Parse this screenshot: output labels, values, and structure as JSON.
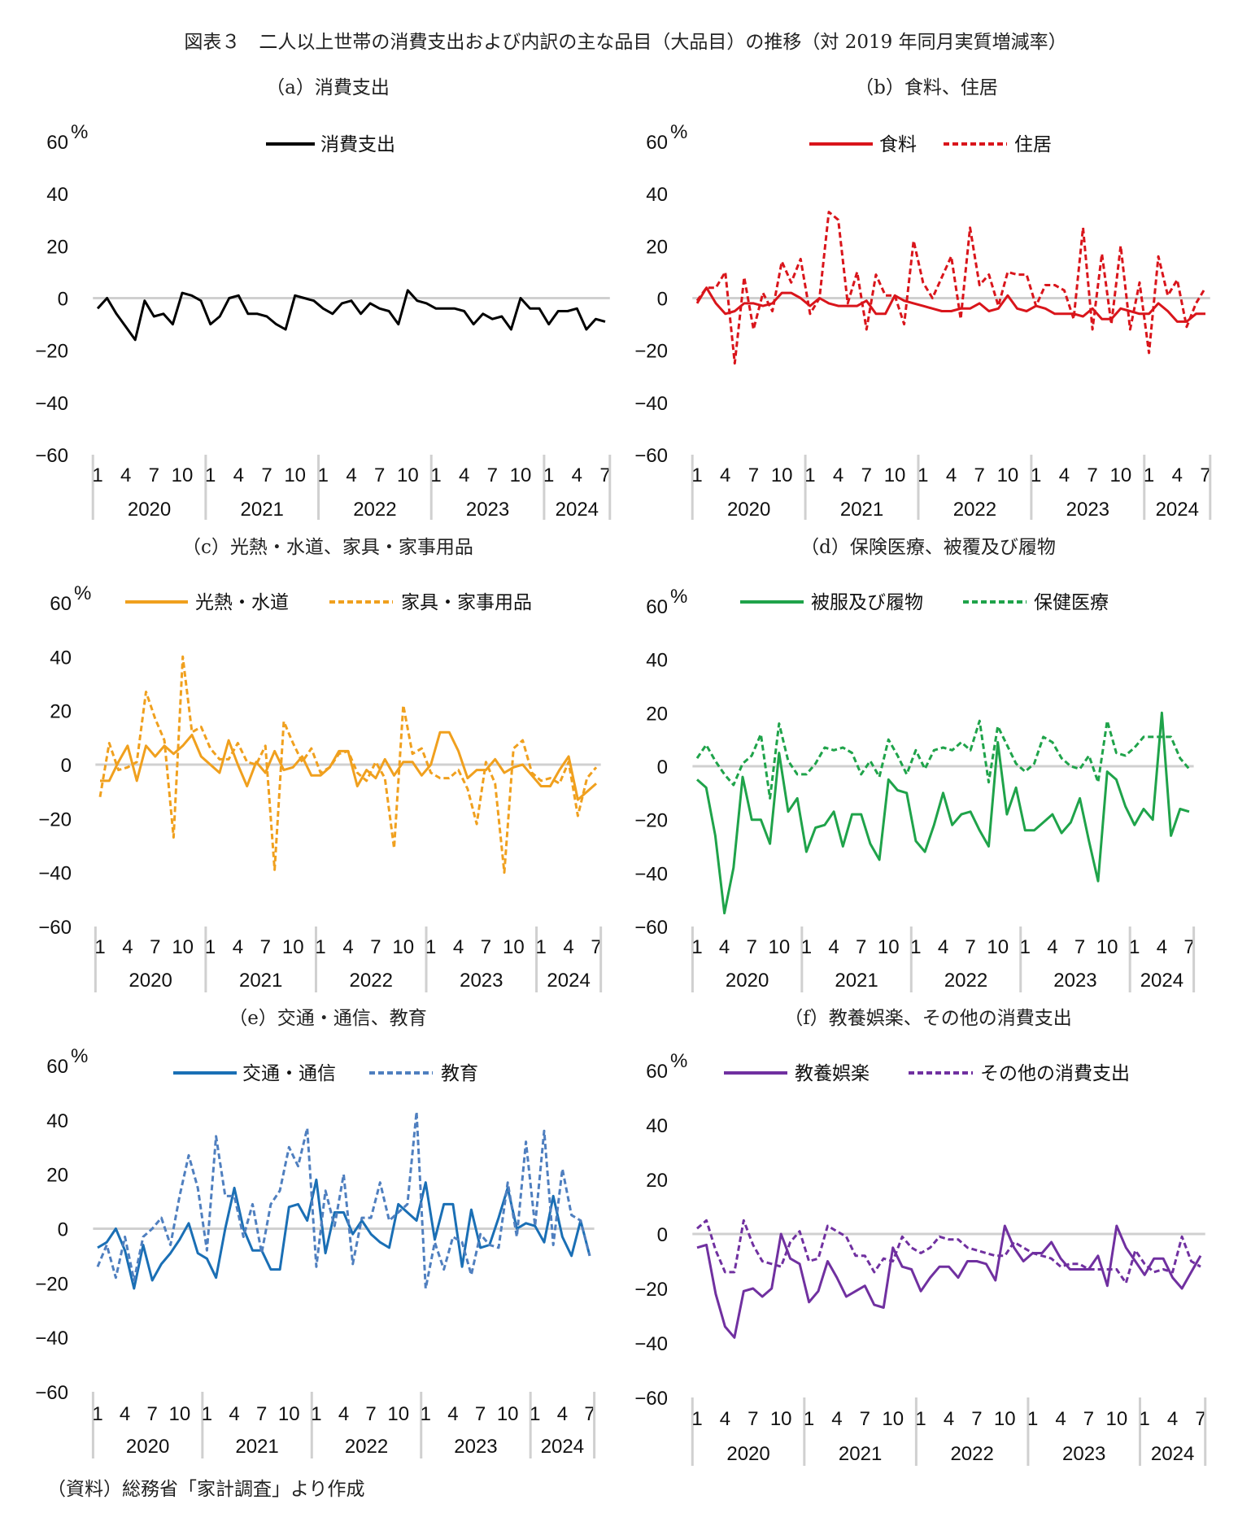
{
  "title": "図表３　二人以上世帯の消費支出および内訳の主な品目（大品目）の推移（対 2019 年同月実質増減率）",
  "footnote": "（資料）総務省「家計調査」より作成",
  "chart_data": [
    {
      "type": "line",
      "title": "（a）消費支出",
      "ylabel": "%",
      "ylim": [
        -60,
        60
      ],
      "yticks": [
        "60",
        "40",
        "20",
        "0",
        "−20",
        "−40",
        "−60"
      ],
      "unit": "%",
      "month_ticks": [
        "1",
        "4",
        "7",
        "10"
      ],
      "years": [
        "2020",
        "2021",
        "2022",
        "2023",
        "2024"
      ],
      "x_range": "2020-01 to 2024-07 (monthly)",
      "legend": "top",
      "series": [
        {
          "name": "消費支出",
          "color": "#000000",
          "dash": false,
          "values": [
            -4,
            0,
            -6,
            -11,
            -16,
            -1,
            -7,
            -6,
            -10,
            2,
            1,
            -1,
            -10,
            -7,
            0,
            1,
            -6,
            -6,
            -7,
            -10,
            -12,
            1,
            0,
            -1,
            -4,
            -6,
            -2,
            -1,
            -6,
            -2,
            -4,
            -5,
            -10,
            3,
            -1,
            -2,
            -4,
            -4,
            -4,
            -5,
            -10,
            -6,
            -8,
            -7,
            -12,
            0,
            -4,
            -4,
            -10,
            -5,
            -5,
            -4,
            -12,
            -8,
            -9
          ]
        }
      ]
    },
    {
      "type": "line",
      "title": "（b）食料、住居",
      "ylabel": "%",
      "ylim": [
        -60,
        60
      ],
      "yticks": [
        "60",
        "40",
        "20",
        "0",
        "−20",
        "−40",
        "−60"
      ],
      "unit": "%",
      "month_ticks": [
        "1",
        "4",
        "7",
        "10"
      ],
      "years": [
        "2020",
        "2021",
        "2022",
        "2023",
        "2024"
      ],
      "legend": "top",
      "series": [
        {
          "name": "食料",
          "color": "#d9151b",
          "dash": false,
          "values": [
            -2,
            4,
            -2,
            -6,
            -5,
            -2,
            -2,
            -3,
            -2,
            2,
            2,
            0,
            -3,
            0,
            -2,
            -3,
            -3,
            -3,
            -1,
            -6,
            -6,
            1,
            -1,
            -2,
            -3,
            -4,
            -5,
            -5,
            -4,
            -4,
            -2,
            -5,
            -4,
            1,
            -4,
            -5,
            -3,
            -4,
            -6,
            -6,
            -6,
            -7,
            -4,
            -8,
            -8,
            -4,
            -5,
            -6,
            -6,
            -2,
            -5,
            -9,
            -9,
            -6,
            -6
          ]
        },
        {
          "name": "住居",
          "color": "#d9151b",
          "dash": true,
          "values": [
            -1,
            4,
            4,
            10,
            -25,
            8,
            -12,
            2,
            -5,
            14,
            6,
            15,
            -6,
            0,
            33,
            30,
            -2,
            10,
            -12,
            9,
            1,
            1,
            -10,
            22,
            6,
            0,
            8,
            16,
            -8,
            27,
            5,
            9,
            -3,
            10,
            9,
            9,
            -3,
            5,
            5,
            3,
            -8,
            27,
            -12,
            17,
            -10,
            20,
            -12,
            6,
            -21,
            16,
            1,
            7,
            -11,
            -2,
            4
          ]
        }
      ]
    },
    {
      "type": "line",
      "title": "（c）光熱・水道、家具・家事用品",
      "ylabel": "%",
      "ylim": [
        -60,
        60
      ],
      "yticks": [
        "60",
        "40",
        "20",
        "0",
        "−20",
        "−40",
        "−60"
      ],
      "unit": "%",
      "month_ticks": [
        "1",
        "4",
        "7",
        "10"
      ],
      "years": [
        "2020",
        "2021",
        "2022",
        "2023",
        "2024"
      ],
      "legend": "top",
      "series": [
        {
          "name": "光熱・水道",
          "color": "#f0a01e",
          "dash": false,
          "values": [
            -6,
            -6,
            1,
            7,
            -6,
            7,
            3,
            7,
            4,
            7,
            11,
            3,
            0,
            -3,
            9,
            0,
            -8,
            1,
            -3,
            5,
            -2,
            -1,
            3,
            -4,
            -4,
            -1,
            5,
            5,
            -8,
            -2,
            -5,
            2,
            -4,
            1,
            1,
            -4,
            0,
            12,
            12,
            5,
            -5,
            -2,
            -2,
            2,
            -3,
            -1,
            0,
            -4,
            -8,
            -8,
            -2,
            3,
            -13,
            -10,
            -7
          ]
        },
        {
          "name": "家具・家事用品",
          "color": "#f0a01e",
          "dash": true,
          "values": [
            -12,
            8,
            -2,
            -1,
            1,
            27,
            17,
            9,
            -27,
            40,
            12,
            14,
            6,
            2,
            2,
            8,
            1,
            0,
            7,
            -39,
            16,
            8,
            1,
            6,
            -3,
            -1,
            4,
            5,
            -3,
            -6,
            1,
            -5,
            -31,
            22,
            4,
            6,
            -3,
            -5,
            -5,
            -2,
            -9,
            -22,
            1,
            -7,
            -40,
            6,
            9,
            -3,
            -6,
            -5,
            -7,
            1,
            -19,
            -5,
            -1
          ]
        }
      ]
    },
    {
      "type": "line",
      "title": "（d）保険医療、被覆及び履物",
      "ylabel": "%",
      "ylim": [
        -60,
        60
      ],
      "yticks": [
        "60",
        "40",
        "20",
        "0",
        "−20",
        "−40",
        "−60"
      ],
      "unit": "%",
      "month_ticks": [
        "1",
        "4",
        "7",
        "10"
      ],
      "years": [
        "2020",
        "2021",
        "2022",
        "2023",
        "2024"
      ],
      "legend": "top",
      "series": [
        {
          "name": "被服及び履物",
          "color": "#1fa34a",
          "dash": false,
          "values": [
            -5,
            -8,
            -26,
            -55,
            -38,
            -4,
            -20,
            -20,
            -29,
            5,
            -17,
            -12,
            -32,
            -23,
            -22,
            -17,
            -30,
            -18,
            -18,
            -29,
            -35,
            -5,
            -9,
            -10,
            -28,
            -32,
            -22,
            -10,
            -22,
            -18,
            -17,
            -24,
            -30,
            9,
            -18,
            -8,
            -24,
            -24,
            -21,
            -18,
            -25,
            -21,
            -12,
            -28,
            -43,
            -2,
            -5,
            -15,
            -22,
            -16,
            -20,
            20,
            -26,
            -16,
            -17
          ]
        },
        {
          "name": "保健医療",
          "color": "#1fa34a",
          "dash": true,
          "values": [
            3,
            8,
            2,
            -3,
            -7,
            1,
            4,
            12,
            -12,
            16,
            2,
            -3,
            -3,
            1,
            7,
            6,
            7,
            5,
            -3,
            2,
            -4,
            10,
            4,
            -3,
            6,
            -1,
            6,
            7,
            6,
            9,
            6,
            17,
            -6,
            15,
            8,
            1,
            -2,
            1,
            11,
            9,
            3,
            0,
            -1,
            4,
            -6,
            17,
            5,
            4,
            7,
            11,
            11,
            11,
            11,
            3,
            -1
          ]
        }
      ]
    },
    {
      "type": "line",
      "title": "（e）交通・通信、教育",
      "ylabel": "%",
      "ylim": [
        -60,
        60
      ],
      "yticks": [
        "60",
        "40",
        "20",
        "0",
        "−20",
        "−40",
        "−60"
      ],
      "unit": "%",
      "month_ticks": [
        "1",
        "4",
        "7",
        "10"
      ],
      "years": [
        "2020",
        "2021",
        "2022",
        "2023",
        "2024"
      ],
      "legend": "top",
      "series": [
        {
          "name": "交通・通信",
          "color": "#1a6fb5",
          "dash": false,
          "values": [
            -7,
            -5,
            0,
            -8,
            -22,
            -6,
            -19,
            -13,
            -9,
            -4,
            2,
            -9,
            -11,
            -18,
            0,
            15,
            0,
            -8,
            -8,
            -15,
            -15,
            8,
            9,
            3,
            18,
            -9,
            6,
            6,
            -2,
            3,
            -2,
            -5,
            -7,
            9,
            6,
            3,
            17,
            -4,
            9,
            9,
            -14,
            7,
            -7,
            -6,
            4,
            15,
            0,
            2,
            1,
            -5,
            12,
            -3,
            -10,
            3,
            -10
          ]
        },
        {
          "name": "教育",
          "color": "#4f7fbf",
          "dash": true,
          "values": [
            -14,
            -6,
            -18,
            -3,
            -19,
            -3,
            0,
            4,
            -6,
            12,
            27,
            15,
            -8,
            34,
            12,
            12,
            -3,
            9,
            -9,
            9,
            14,
            30,
            23,
            37,
            -14,
            14,
            1,
            20,
            -13,
            4,
            4,
            17,
            3,
            6,
            9,
            43,
            -22,
            -5,
            -15,
            -3,
            -5,
            -17,
            -2,
            -6,
            -7,
            17,
            -3,
            32,
            1,
            36,
            -6,
            22,
            5,
            3,
            -10
          ]
        }
      ]
    },
    {
      "type": "line",
      "title": "（f）教養娯楽、その他の消費支出",
      "ylabel": "%",
      "ylim": [
        -60,
        60
      ],
      "yticks": [
        "60",
        "40",
        "20",
        "0",
        "−20",
        "−40",
        "−60"
      ],
      "unit": "%",
      "month_ticks": [
        "1",
        "4",
        "7",
        "10"
      ],
      "years": [
        "2020",
        "2021",
        "2022",
        "2023",
        "2024"
      ],
      "legend": "top",
      "series": [
        {
          "name": "教養娯楽",
          "color": "#7030a0",
          "dash": false,
          "values": [
            -5,
            -4,
            -22,
            -34,
            -38,
            -21,
            -20,
            -23,
            -20,
            0,
            -9,
            -11,
            -25,
            -21,
            -10,
            -16,
            -23,
            -21,
            -19,
            -26,
            -27,
            -5,
            -12,
            -13,
            -21,
            -16,
            -12,
            -12,
            -16,
            -10,
            -10,
            -11,
            -17,
            3,
            -5,
            -10,
            -7,
            -7,
            -3,
            -9,
            -13,
            -13,
            -13,
            -8,
            -19,
            3,
            -5,
            -10,
            -15,
            -9,
            -9,
            -16,
            -20,
            -14,
            -8
          ]
        },
        {
          "name": "その他の消費支出",
          "color": "#7030a0",
          "dash": true,
          "values": [
            2,
            5,
            -6,
            -14,
            -14,
            5,
            -4,
            -10,
            -11,
            -12,
            -3,
            1,
            -10,
            -9,
            3,
            1,
            -1,
            -8,
            -8,
            -14,
            -9,
            -10,
            -1,
            -5,
            -7,
            -5,
            -1,
            -2,
            -2,
            -5,
            -6,
            -7,
            -8,
            -8,
            -3,
            -5,
            -7,
            -8,
            -9,
            -12,
            -11,
            -11,
            -13,
            -13,
            -13,
            -13,
            -18,
            -6,
            -11,
            -14,
            -13,
            -14,
            -1,
            -10,
            -12
          ]
        }
      ]
    }
  ]
}
